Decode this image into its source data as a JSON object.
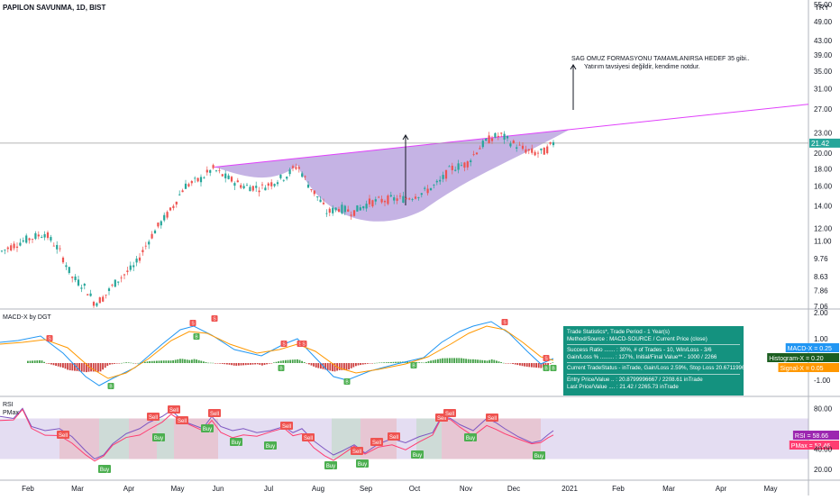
{
  "symbol_title": "PAPILON SAVUNMA, 1D, BIST",
  "currency": "TRY",
  "annotation": {
    "line1": "SAG OMUZ FORMASYONU TAMAMLANIRSA HEDEF 35 gibi..",
    "line2": "Yatırım tavsiyesi değildir, kendime notdur."
  },
  "price_axis_ticks": [
    "55.00",
    "49.00",
    "43.00",
    "39.00",
    "35.00",
    "31.00",
    "27.00",
    "23.00",
    "20.00",
    "18.00",
    "16.00",
    "14.00",
    "12.00",
    "11.00",
    "9.76",
    "8.63",
    "7.86",
    "7.06"
  ],
  "current_price_label": "21.42",
  "macd_panel": {
    "title": "MACD-X by DGT",
    "ticks": [
      "2.00",
      "1.00",
      "-1.00"
    ],
    "labels": [
      {
        "text": "MACD-X = 0.25",
        "color": "#2196f3"
      },
      {
        "text": "Histogram-X = 0.20",
        "color": "#1b5e20"
      },
      {
        "text": "Signal-X = 0.05",
        "color": "#ff9800"
      }
    ]
  },
  "stats": {
    "lines": [
      "Trade Statistics*, Trade Period - 1 Year(s)",
      "Method/Source : MACD-SOURCE / Current Price (close)",
      "Success Ratio ....... : 30%, # of Trades - 10, Win/Loss - 3/6",
      "Gain/Loss % ......... : 127%, Initial/Final Value** - 1000 / 2266",
      "Current TradeStatus - inTrade, Gain/Loss 2.59%, Stop Loss 20.67119967",
      "Entry Price/Value .. : 20.8799996667 / 2208.61 inTrade",
      "Last Price/Value .... : 21.42 / 2265.73 inTrade"
    ]
  },
  "rsi_panel": {
    "title": "RSI",
    "subtitle": "PMax",
    "ticks": [
      "80.00",
      "40.00",
      "20.00"
    ],
    "labels": [
      {
        "text": "RSI = 58.66",
        "color": "#9c27b0"
      },
      {
        "text": "PMax = 52.46",
        "color": "#ff3d71"
      }
    ]
  },
  "time_axis": [
    "Feb",
    "Mar",
    "Apr",
    "May",
    "Jun",
    "Jul",
    "Aug",
    "Sep",
    "Oct",
    "Nov",
    "Dec",
    "2021",
    "Feb",
    "Mar",
    "Apr",
    "May"
  ],
  "signals": {
    "macd": [
      {
        "type": "S",
        "label": "S"
      },
      {
        "type": "B",
        "label": "B"
      },
      {
        "type": "S",
        "label": "S"
      },
      {
        "type": "B",
        "label": "B"
      },
      {
        "type": "S",
        "label": "S"
      },
      {
        "type": "S",
        "label": "S"
      },
      {
        "type": "B",
        "label": "B"
      },
      {
        "type": "S",
        "label": "S"
      },
      {
        "type": "S",
        "label": "S"
      },
      {
        "type": "B",
        "label": "B"
      },
      {
        "type": "B",
        "label": "B"
      },
      {
        "type": "S",
        "label": "S"
      },
      {
        "type": "S",
        "label": "S"
      },
      {
        "type": "B",
        "label": "B"
      },
      {
        "type": "B",
        "label": "B"
      }
    ],
    "rsi_sell_label": "Sell",
    "rsi_buy_label": "Buy"
  },
  "chart_data": {
    "type": "candlestick",
    "title": "PAPILON SAVUNMA, 1D, BIST",
    "y_scale": "log",
    "ylim": [
      7.06,
      55.0
    ],
    "x_months": [
      "Feb",
      "Mar",
      "Apr",
      "May",
      "Jun",
      "Jul",
      "Aug",
      "Sep",
      "Oct",
      "Nov",
      "Dec",
      "2021",
      "Feb",
      "Mar",
      "Apr",
      "May"
    ],
    "monthly_close_approx": [
      {
        "month": "Feb",
        "close": 9.8
      },
      {
        "month": "Mar",
        "close": 7.4
      },
      {
        "month": "Apr",
        "close": 10.6
      },
      {
        "month": "May",
        "close": 14.5
      },
      {
        "month": "Jun",
        "close": 17.4
      },
      {
        "month": "Jul",
        "close": 17.8
      },
      {
        "month": "Aug",
        "close": 13.6
      },
      {
        "month": "Sep",
        "close": 14.3
      },
      {
        "month": "Oct",
        "close": 16.5
      },
      {
        "month": "Nov",
        "close": 22.2
      },
      {
        "month": "Dec",
        "close": 21.42
      }
    ],
    "last_close": 21.42,
    "neckline": {
      "from": {
        "month": "Jun",
        "price": 18.2
      },
      "to": {
        "month": "Dec",
        "price": 23.5
      }
    },
    "target_price": 35
  }
}
